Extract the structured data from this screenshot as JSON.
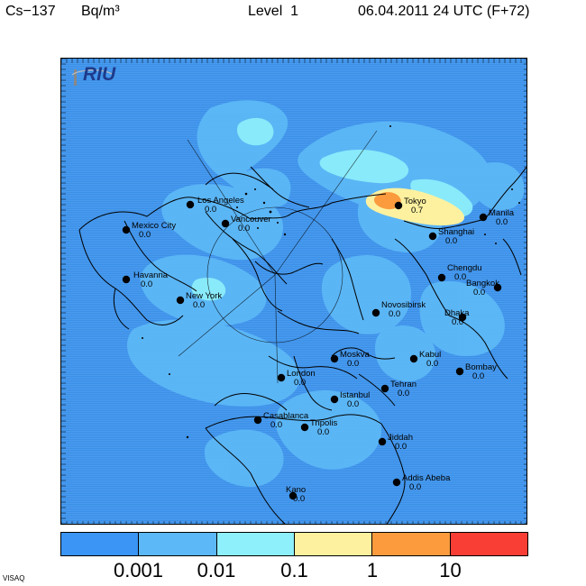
{
  "header": {
    "species": "Cs−137",
    "unit": "Bq/m³",
    "level": "Level  1",
    "datetime": "06.04.2011 24 UTC (F+72)"
  },
  "logo": {
    "text": "RIU"
  },
  "footer": {
    "text": "VISAQ"
  },
  "colorbar": {
    "colors": [
      "#3a95f4",
      "#5cb8f6",
      "#8ef0fb",
      "#fdf19f",
      "#fb9b3e",
      "#f93f35"
    ],
    "tick_labels": [
      "0.001",
      "0.01",
      "0.1",
      "1",
      "10"
    ]
  },
  "cities": [
    {
      "name": "Los Angeles",
      "value": "0.0"
    },
    {
      "name": "Vancouver",
      "value": "0.0"
    },
    {
      "name": "Mexico City",
      "value": "0.0"
    },
    {
      "name": "Havanna",
      "value": "0.0"
    },
    {
      "name": "New York",
      "value": "0.0"
    },
    {
      "name": "Tokyo",
      "value": "0.7"
    },
    {
      "name": "Manila",
      "value": "0.0"
    },
    {
      "name": "Shanghai",
      "value": "0.0"
    },
    {
      "name": "Chengdu",
      "value": "0.0"
    },
    {
      "name": "Bangkok",
      "value": "0.0"
    },
    {
      "name": "Dhaka",
      "value": "0.0"
    },
    {
      "name": "Novosibirsk",
      "value": "0.0"
    },
    {
      "name": "Moskva",
      "value": "0.0"
    },
    {
      "name": "Kabul",
      "value": "0.0"
    },
    {
      "name": "Bombay",
      "value": "0.0"
    },
    {
      "name": "London",
      "value": "0.0"
    },
    {
      "name": "Tehran",
      "value": "0.0"
    },
    {
      "name": "Istanbul",
      "value": "0.0"
    },
    {
      "name": "Casablanca",
      "value": "0.0"
    },
    {
      "name": "Tripolis",
      "value": "0.0"
    },
    {
      "name": "Jiddah",
      "value": "0.0"
    },
    {
      "name": "Addis Abeba",
      "value": "0.0"
    },
    {
      "name": "Kano",
      "value": "0.0"
    }
  ]
}
